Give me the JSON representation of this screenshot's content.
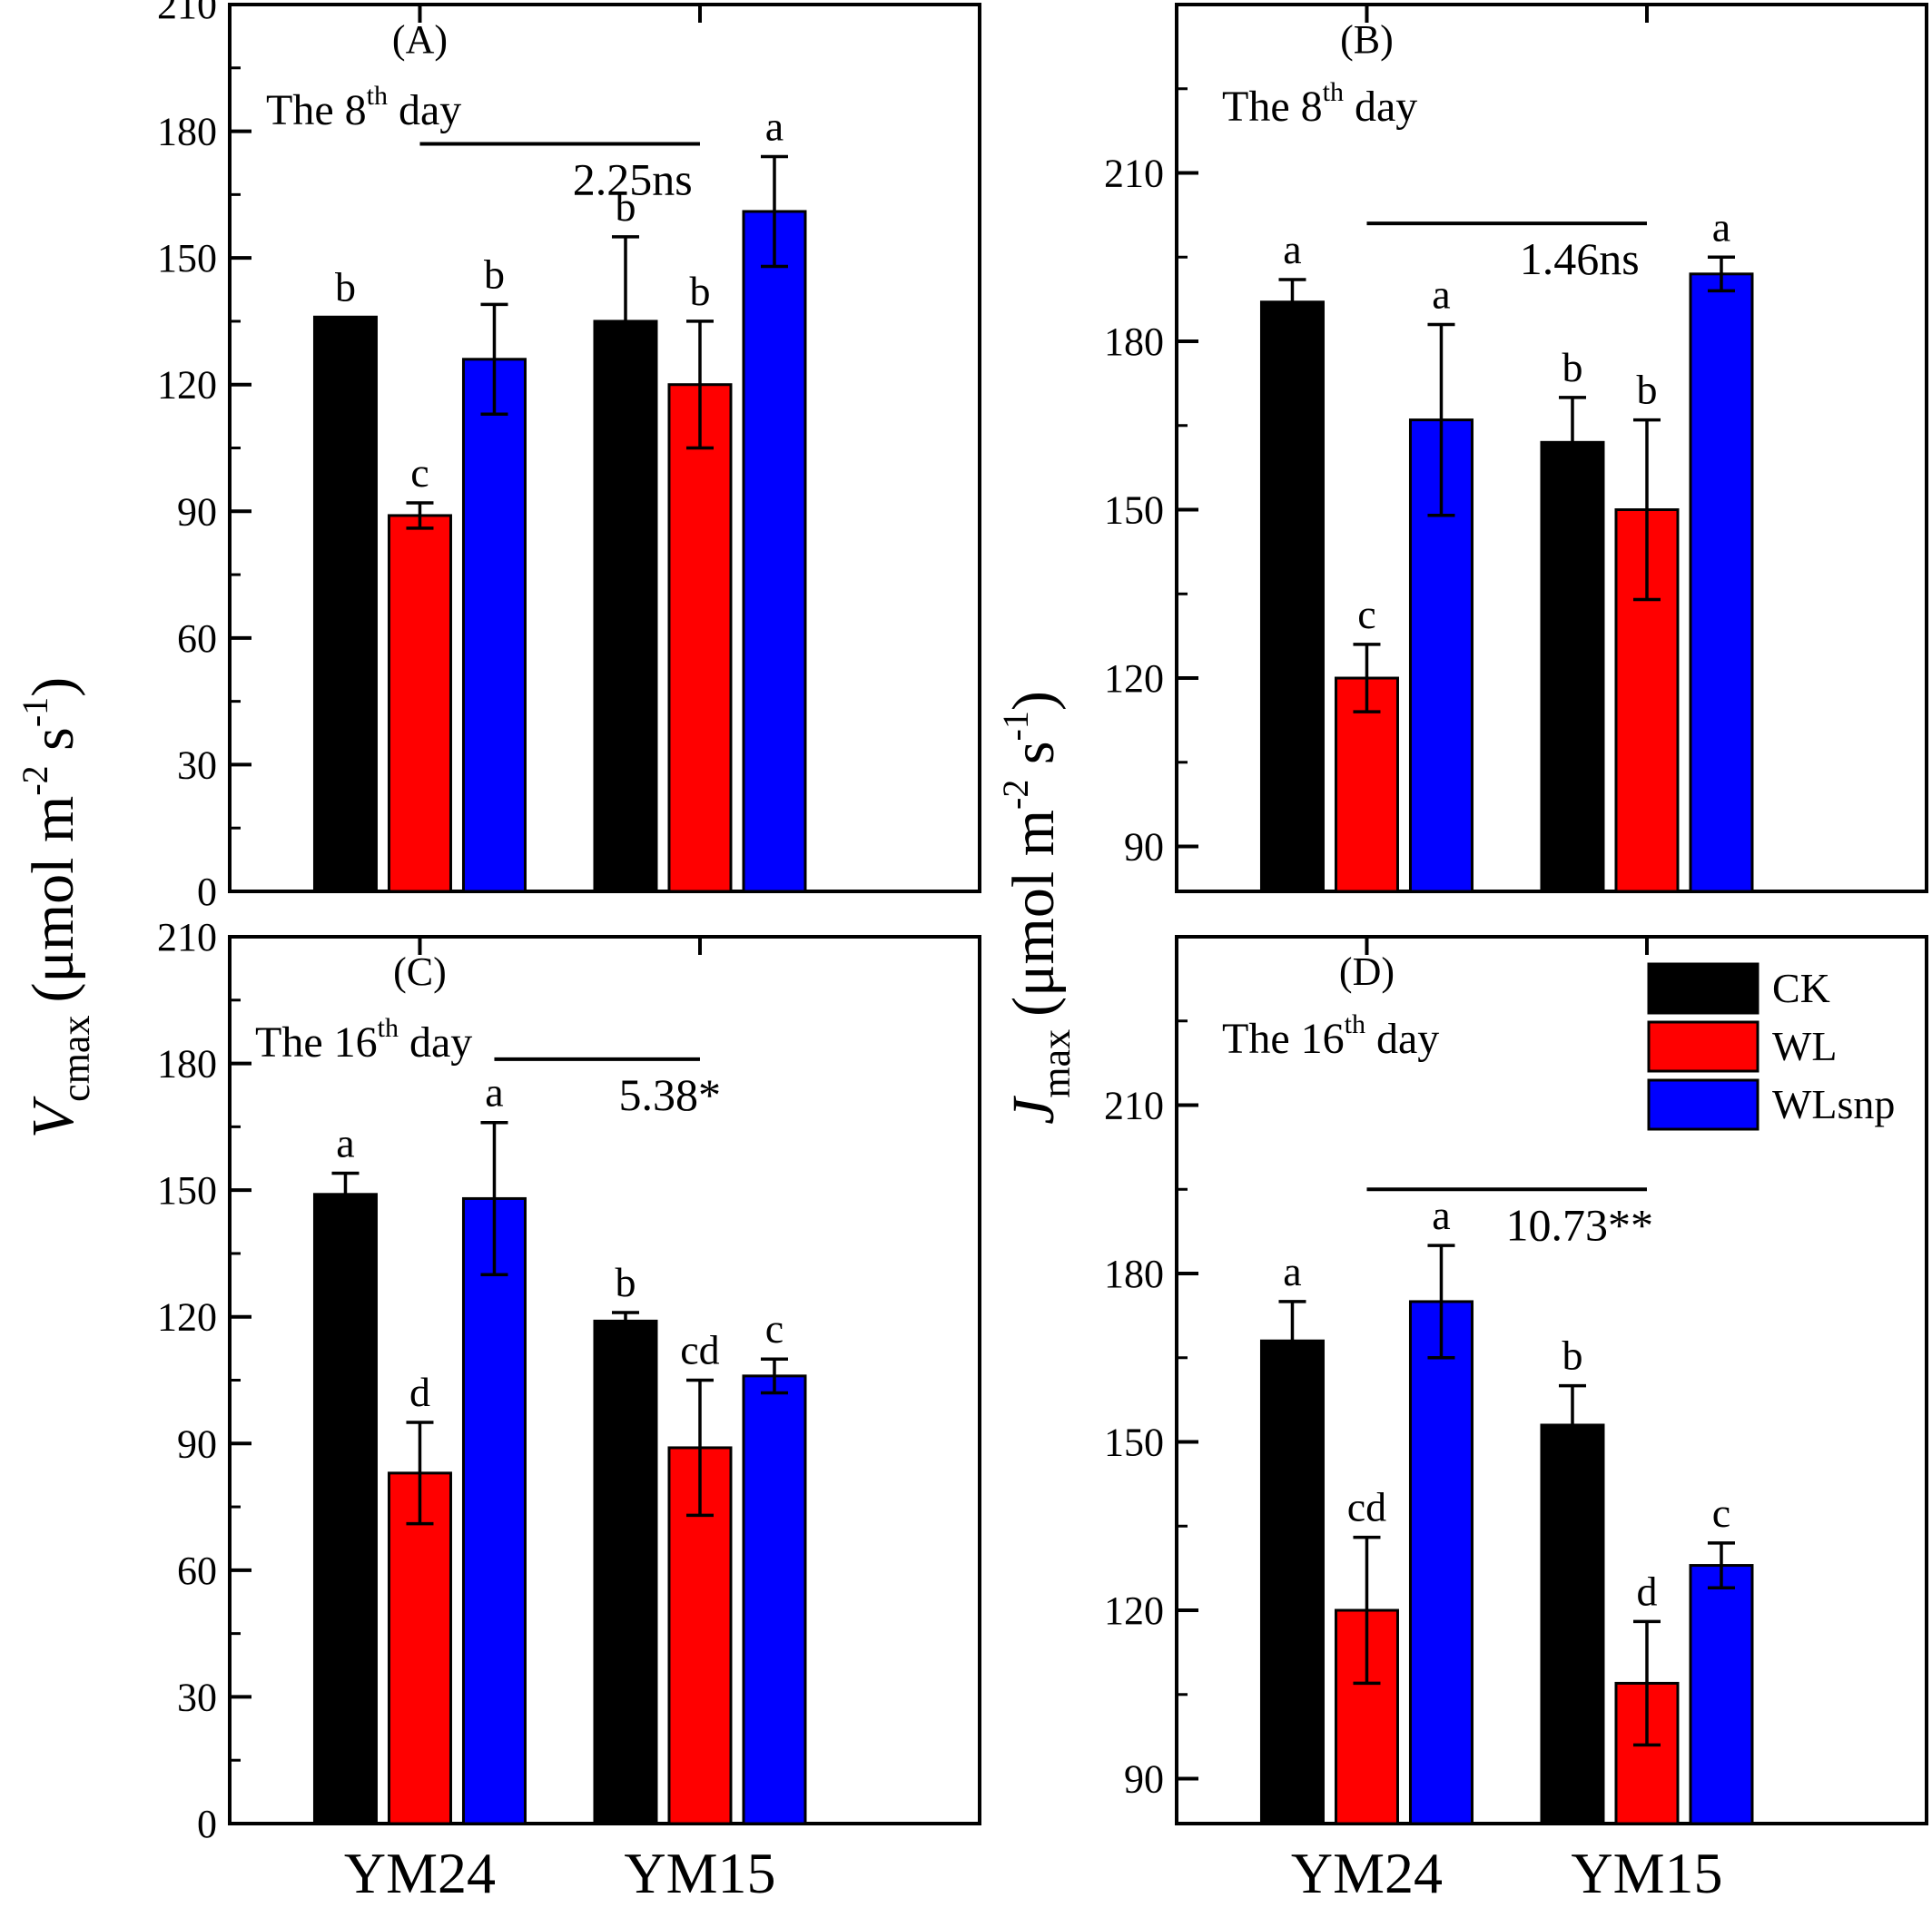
{
  "figure": {
    "series": [
      "CK",
      "WL",
      "WLsnp"
    ],
    "legend": {
      "items": [
        {
          "label": "CK",
          "color": "#000000"
        },
        {
          "label": "WL",
          "color": "#ff0000"
        },
        {
          "label": "WLsnp",
          "color": "#0000ff"
        }
      ],
      "placement": "top-right of panel D"
    },
    "y_label_left": {
      "main": "V",
      "sub": "cmax",
      "unit": "(μmol m",
      "exp1": "-2",
      "mid": " s",
      "exp2": "-1",
      "close": ")"
    },
    "y_label_right": {
      "main": "J",
      "sub": "max",
      "unit": "(μmol m",
      "exp1": "-2",
      "mid": " s",
      "exp2": "-1",
      "close": ")"
    }
  },
  "chart_data": [
    {
      "type": "bar",
      "panel_label": "(A)",
      "day_text": {
        "pre": "The 8",
        "sup": "th",
        "post": " day"
      },
      "stat_label": "2.25ns",
      "categories": [
        "YM24",
        "YM15"
      ],
      "series": [
        {
          "name": "CK",
          "color": "#000000",
          "values": [
            136,
            135
          ],
          "errors": [
            0,
            20
          ],
          "letters": [
            "b",
            "b"
          ]
        },
        {
          "name": "WL",
          "color": "#ff0000",
          "values": [
            89,
            120
          ],
          "errors": [
            3,
            15
          ],
          "letters": [
            "c",
            "b"
          ]
        },
        {
          "name": "WLsnp",
          "color": "#0000ff",
          "values": [
            126,
            161
          ],
          "errors": [
            13,
            13
          ],
          "letters": [
            "b",
            "a"
          ]
        }
      ],
      "ylim": [
        0,
        210
      ],
      "yticks": [
        0,
        30,
        60,
        90,
        120,
        150,
        180,
        210
      ],
      "stat_line": {
        "x_from": [
          0,
          1
        ],
        "x_to": [
          1,
          1
        ],
        "y": 177
      }
    },
    {
      "type": "bar",
      "panel_label": "(B)",
      "day_text": {
        "pre": "The 8",
        "sup": "th",
        "post": " day"
      },
      "stat_label": "1.46ns",
      "categories": [
        "YM24",
        "YM15"
      ],
      "series": [
        {
          "name": "CK",
          "color": "#000000",
          "values": [
            187,
            162
          ],
          "errors": [
            4,
            8
          ],
          "letters": [
            "a",
            "b"
          ]
        },
        {
          "name": "WL",
          "color": "#ff0000",
          "values": [
            120,
            150
          ],
          "errors": [
            6,
            16
          ],
          "letters": [
            "c",
            "b"
          ]
        },
        {
          "name": "WLsnp",
          "color": "#0000ff",
          "values": [
            166,
            192
          ],
          "errors": [
            17,
            3
          ],
          "letters": [
            "a",
            "a"
          ]
        }
      ],
      "ylim": [
        82,
        240
      ],
      "yticks": [
        90,
        120,
        150,
        180,
        210
      ],
      "stat_line": {
        "x_from": [
          0,
          1
        ],
        "x_to": [
          1,
          1
        ],
        "y": 201
      }
    },
    {
      "type": "bar",
      "panel_label": "(C)",
      "day_text": {
        "pre": "The 16",
        "sup": "th",
        "post": " day"
      },
      "stat_label": "5.38*",
      "categories": [
        "YM24",
        "YM15"
      ],
      "series": [
        {
          "name": "CK",
          "color": "#000000",
          "values": [
            149,
            119
          ],
          "errors": [
            5,
            2
          ],
          "letters": [
            "a",
            "b"
          ]
        },
        {
          "name": "WL",
          "color": "#ff0000",
          "values": [
            83,
            89
          ],
          "errors": [
            12,
            16
          ],
          "letters": [
            "d",
            "cd"
          ]
        },
        {
          "name": "WLsnp",
          "color": "#0000ff",
          "values": [
            148,
            106
          ],
          "errors": [
            18,
            4
          ],
          "letters": [
            "a",
            "c"
          ]
        }
      ],
      "ylim": [
        0,
        210
      ],
      "yticks": [
        0,
        30,
        60,
        90,
        120,
        150,
        180,
        210
      ],
      "stat_line": {
        "x_from": [
          0,
          2
        ],
        "x_to": [
          1,
          1
        ],
        "y": 181
      }
    },
    {
      "type": "bar",
      "panel_label": "(D)",
      "day_text": {
        "pre": "The 16",
        "sup": "th",
        "post": " day"
      },
      "stat_label": "10.73**",
      "categories": [
        "YM24",
        "YM15"
      ],
      "series": [
        {
          "name": "CK",
          "color": "#000000",
          "values": [
            168,
            153
          ],
          "errors": [
            7,
            7
          ],
          "letters": [
            "a",
            "b"
          ]
        },
        {
          "name": "WL",
          "color": "#ff0000",
          "values": [
            120,
            107
          ],
          "errors": [
            13,
            11
          ],
          "letters": [
            "cd",
            "d"
          ]
        },
        {
          "name": "WLsnp",
          "color": "#0000ff",
          "values": [
            175,
            128
          ],
          "errors": [
            10,
            4
          ],
          "letters": [
            "a",
            "c"
          ]
        }
      ],
      "ylim": [
        82,
        240
      ],
      "yticks": [
        90,
        120,
        150,
        180,
        210
      ],
      "stat_line": {
        "x_from": [
          0,
          1
        ],
        "x_to": [
          1,
          1
        ],
        "y": 195
      }
    }
  ]
}
